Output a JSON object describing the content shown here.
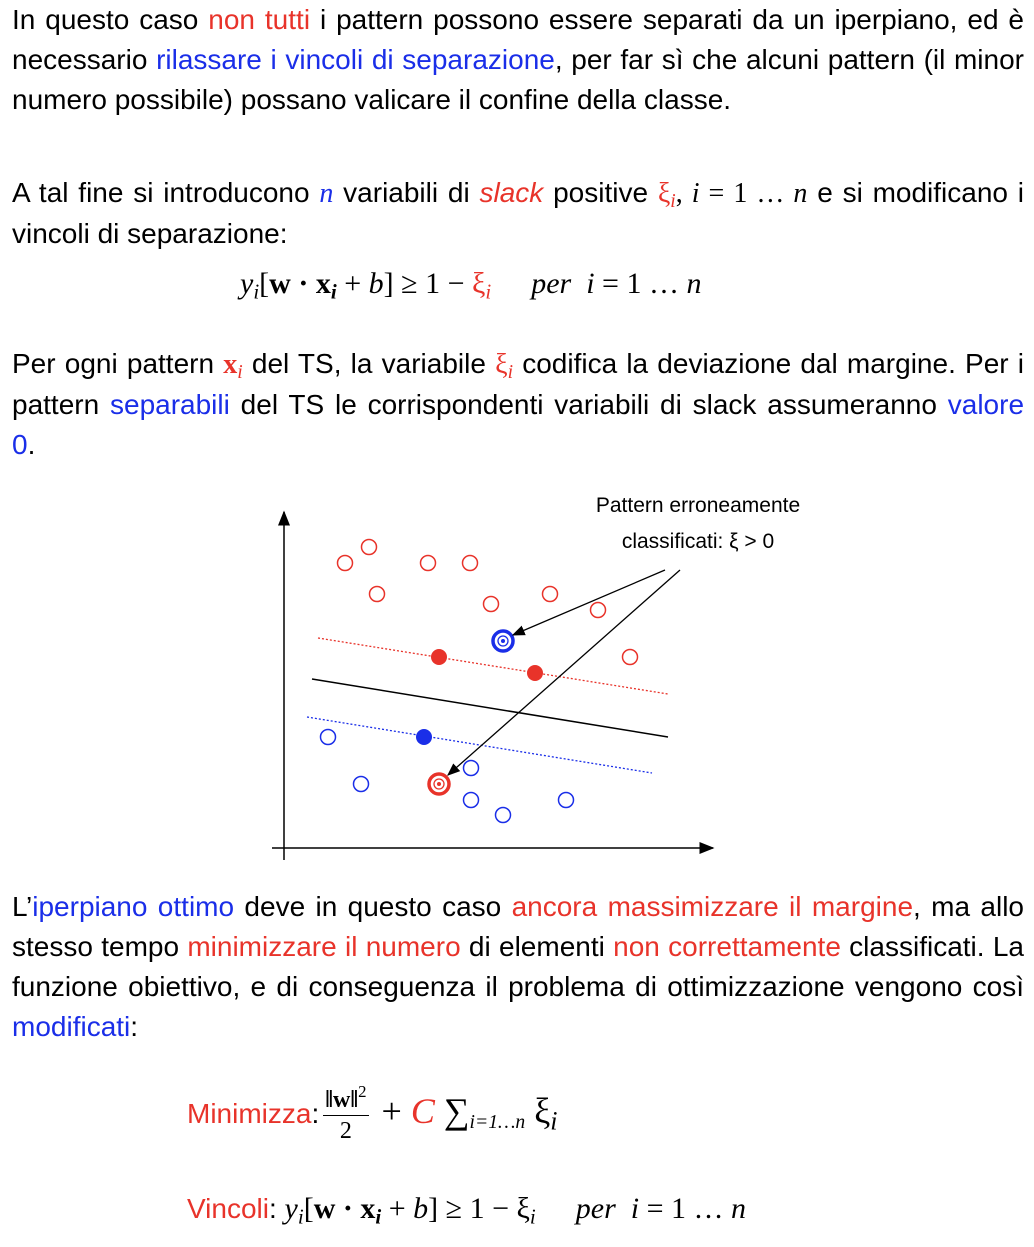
{
  "paragraph_1": [
    "In questo caso ",
    "non tutti",
    " i pattern possono essere separati da un iperpiano, ed è necessario ",
    "rilassare i vincoli di separazione",
    ", per far sì che alcuni pattern (il minor numero possibile) possano valicare il confine della classe."
  ],
  "paragraph_2": [
    "A tal fine si introducono ",
    "n",
    " variabili di ",
    "slack",
    " positive ",
    "ξ",
    "i",
    ", ",
    "i",
    " = 1 … ",
    "n",
    " e si modificano i vincoli di separazione:"
  ],
  "formula_1": [
    "y",
    "i",
    "[",
    "w · x",
    "i",
    " + ",
    "b",
    "] ≥ 1 − ",
    "ξ",
    "i",
    "per  i",
    " = 1 … ",
    "n"
  ],
  "paragraph_3": [
    "Per ogni pattern ",
    "x",
    "i",
    " del TS, la variabile ",
    "ξ",
    "i",
    " codifica la deviazione dal margine. Per i pattern ",
    "separabili",
    " del TS le corrispondenti variabili di slack assumeranno ",
    "valore 0",
    "."
  ],
  "diagram": {
    "label_line_1": "Pattern erroneamente",
    "label_line_2": "classificati: ξ > 0"
  },
  "paragraph_4": [
    "L’",
    "iperpiano ottimo",
    " deve in questo caso ",
    "ancora massimizzare il margine",
    ", ma allo stesso tempo ",
    "minimizzare il numero",
    " di elementi ",
    "non correttamente",
    " classificati. La funzione obiettivo, e di conseguenza il problema di ottimizzazione vengono così ",
    "modificati",
    ":"
  ],
  "objective": {
    "label": "Minimizza",
    "colon": ":",
    "numerator": "‖w‖",
    "exponent": "2",
    "denominator": "2",
    "plus": " + ",
    "c": "C",
    "sum": " ∑",
    "sum_index": "i=1…n",
    "xi": " ξ",
    "xi_index": "i"
  },
  "constraints": {
    "label": "Vincoli",
    "colon": ": ",
    "formula": [
      "y",
      "i",
      "[",
      "w · x",
      "i",
      " + ",
      "b",
      "] ≥ 1 − ξ",
      "i",
      "per  i",
      " = 1 … ",
      "n"
    ]
  }
}
